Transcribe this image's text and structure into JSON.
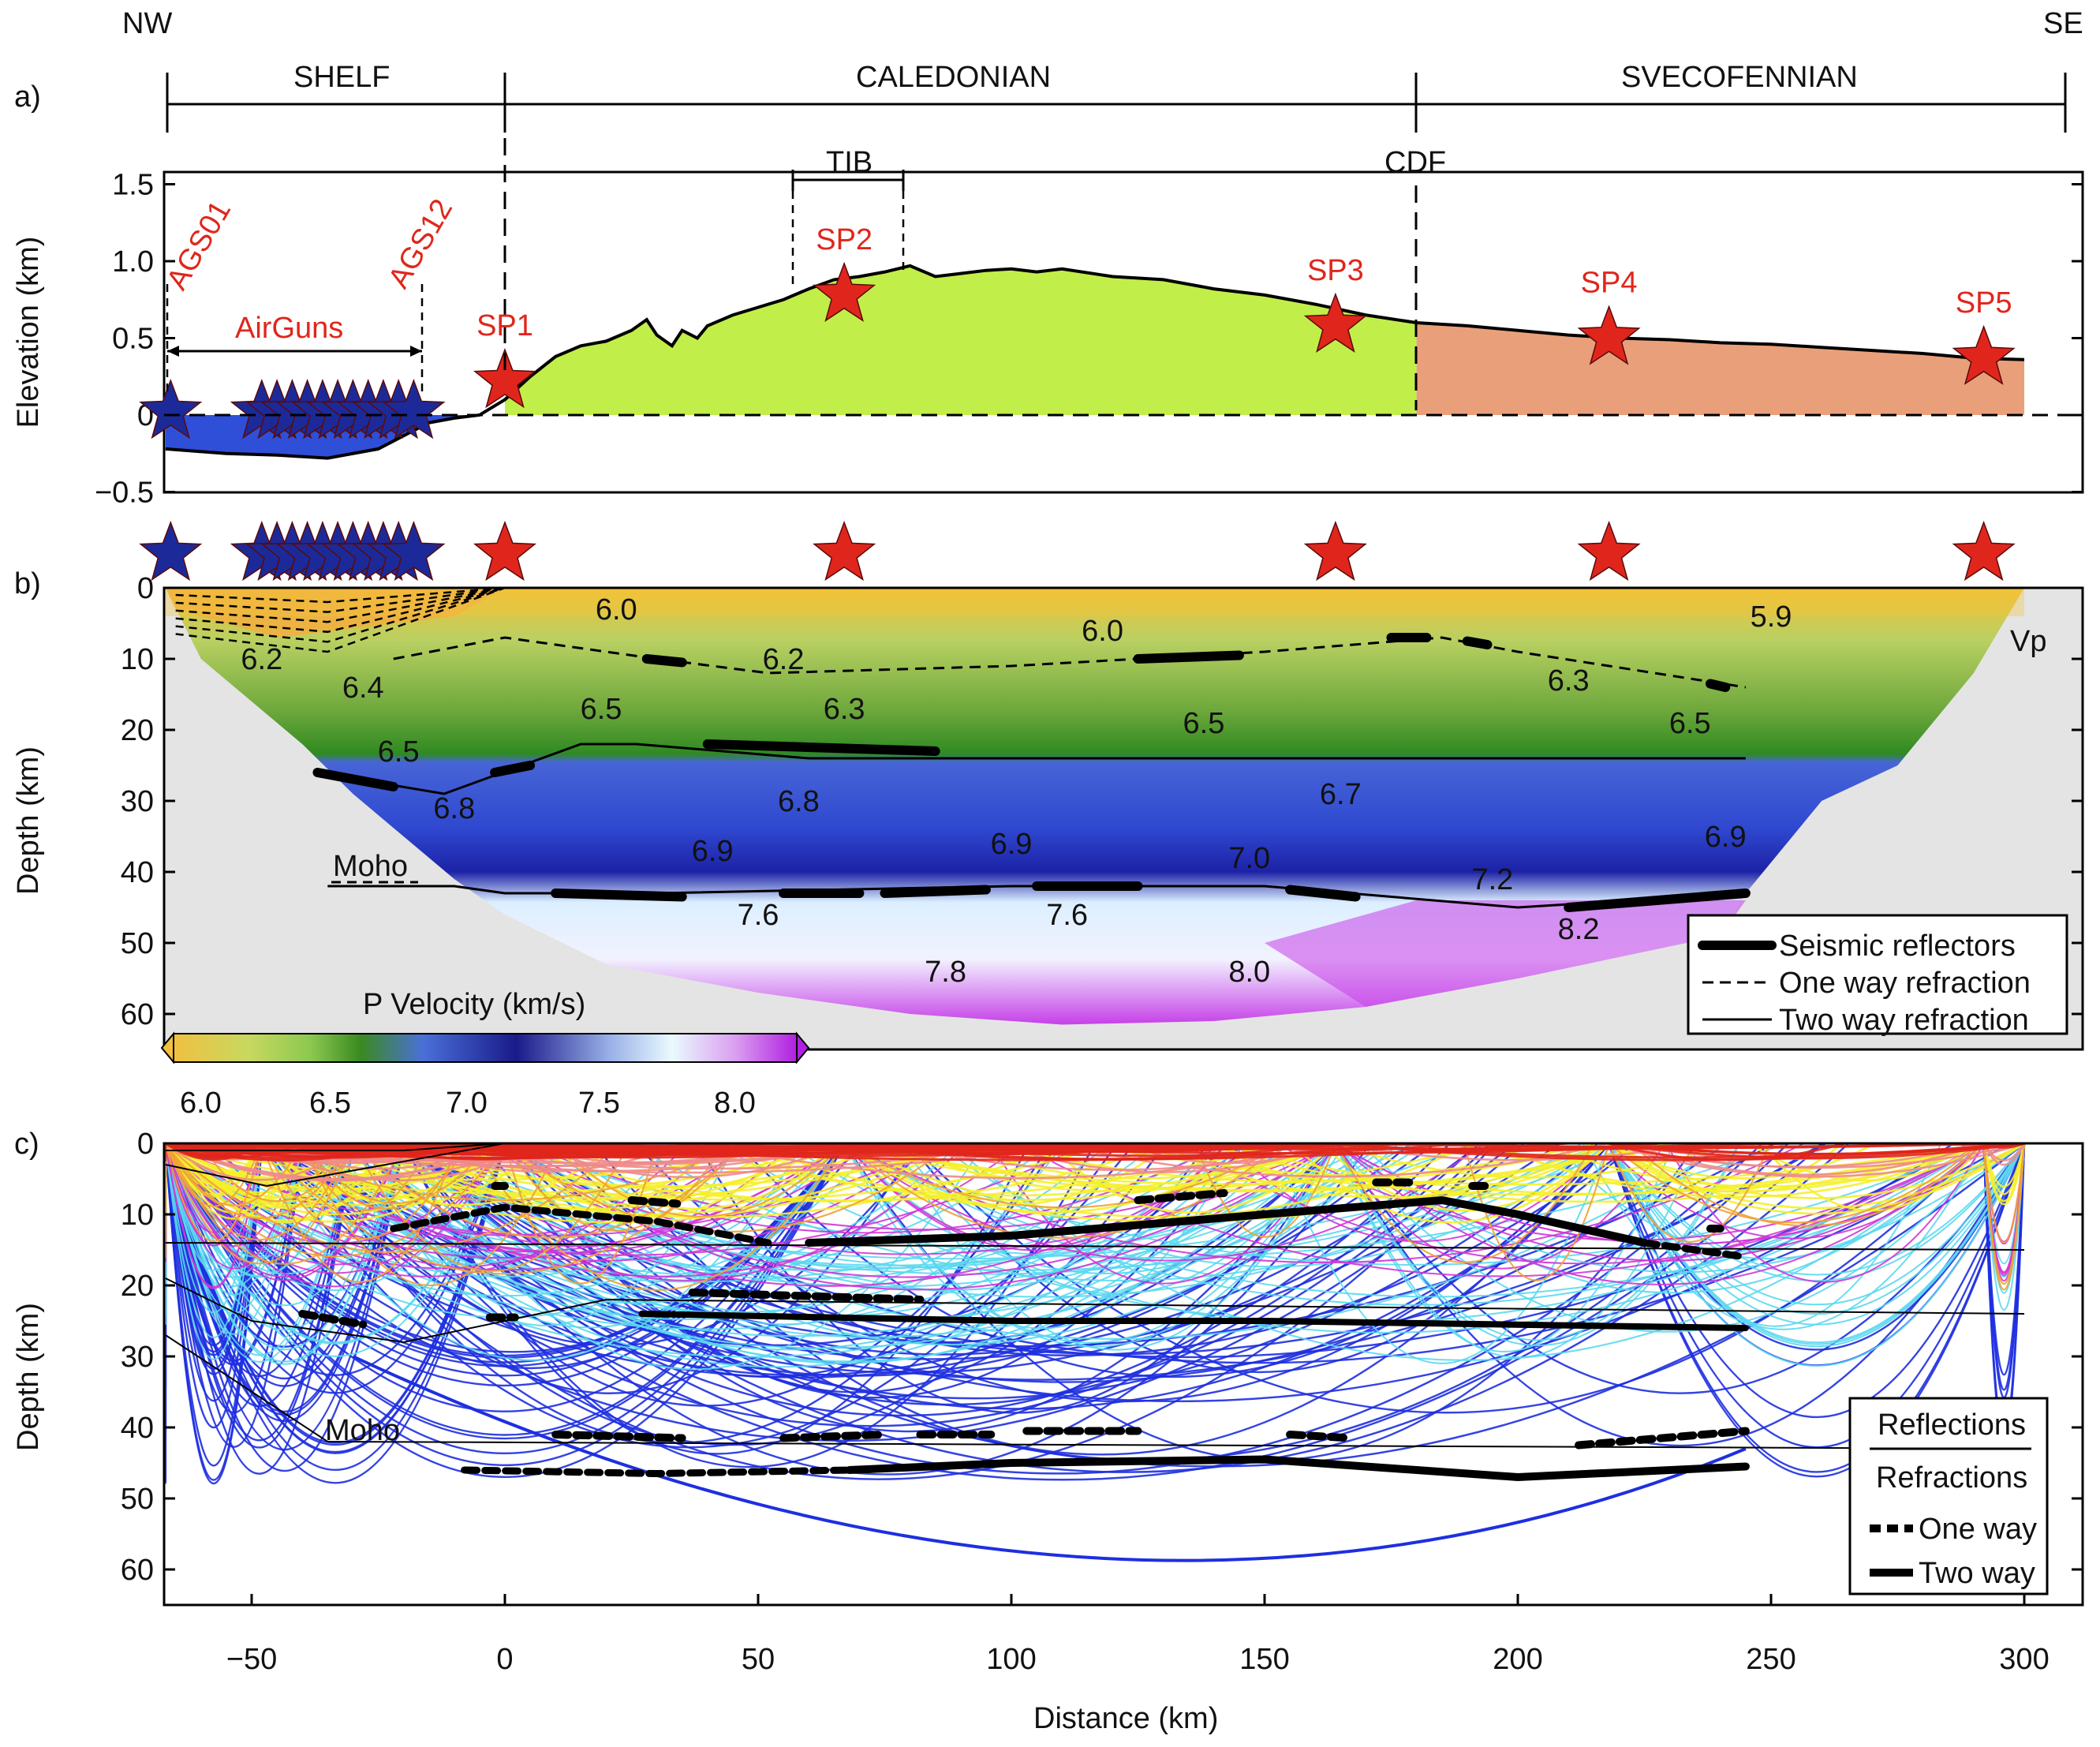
{
  "colors": {
    "shelf_water": "#2f4fd8",
    "caledonian": "#c2ee4a",
    "svecofennian": "#e9a07a",
    "star_red": "#e0261c",
    "star_blue": "#1c2a99",
    "ray_red": "#e0261c",
    "ray_yellow": "#f5ef2a",
    "ray_magenta": "#d235d6",
    "ray_cyan": "#5ad8ef",
    "ray_blue": "#1e2fe0",
    "ray_orange": "#f0a236",
    "ray_pink": "#f08a8a"
  },
  "header": {
    "nw": "NW",
    "se": "SE",
    "domains": [
      "SHELF",
      "CALEDONIAN",
      "SVECOFENNIAN"
    ]
  },
  "panel_a": {
    "label": "a)",
    "ylabel": "Elevation (km)",
    "tib": "TIB",
    "cdf": "CDF",
    "airguns": "AirGuns",
    "ags01": "AGS01",
    "ags12": "AGS12",
    "shots": [
      "SP1",
      "SP2",
      "SP3",
      "SP4",
      "SP5"
    ]
  },
  "panel_b": {
    "label": "b)",
    "ylabel": "Depth (km)",
    "vp": "Vp",
    "moho": "Moho",
    "colorbar_title": "P Velocity (km/s)",
    "colorbar_ticks": [
      "6.0",
      "6.5",
      "7.0",
      "7.5",
      "8.0"
    ],
    "legend": [
      "Seismic reflectors",
      "One way refraction",
      "Two way refraction"
    ],
    "velocity_labels": [
      {
        "text": "6.0",
        "x": 22,
        "y": 3
      },
      {
        "text": "6.2",
        "x": -48,
        "y": 10
      },
      {
        "text": "6.4",
        "x": -28,
        "y": 14
      },
      {
        "text": "6.5",
        "x": -21,
        "y": 23
      },
      {
        "text": "6.5",
        "x": 19,
        "y": 17
      },
      {
        "text": "6.2",
        "x": 55,
        "y": 10
      },
      {
        "text": "6.3",
        "x": 67,
        "y": 17
      },
      {
        "text": "6.0",
        "x": 118,
        "y": 6
      },
      {
        "text": "6.5",
        "x": 138,
        "y": 19
      },
      {
        "text": "6.3",
        "x": 210,
        "y": 13
      },
      {
        "text": "6.5",
        "x": 234,
        "y": 19
      },
      {
        "text": "5.9",
        "x": 250,
        "y": 4
      },
      {
        "text": "6.8",
        "x": -10,
        "y": 31
      },
      {
        "text": "6.8",
        "x": 58,
        "y": 30
      },
      {
        "text": "6.9",
        "x": 41,
        "y": 37
      },
      {
        "text": "6.9",
        "x": 100,
        "y": 36
      },
      {
        "text": "6.7",
        "x": 165,
        "y": 29
      },
      {
        "text": "6.9",
        "x": 241,
        "y": 35
      },
      {
        "text": "7.0",
        "x": 147,
        "y": 38
      },
      {
        "text": "7.2",
        "x": 195,
        "y": 41
      },
      {
        "text": "7.6",
        "x": 50,
        "y": 46
      },
      {
        "text": "7.6",
        "x": 111,
        "y": 46
      },
      {
        "text": "7.8",
        "x": 87,
        "y": 54
      },
      {
        "text": "8.0",
        "x": 147,
        "y": 54
      },
      {
        "text": "8.2",
        "x": 212,
        "y": 48
      }
    ]
  },
  "panel_c": {
    "label": "c)",
    "ylabel": "Depth (km)",
    "xlabel": "Distance (km)",
    "moho": "Moho",
    "legend_title1": "Reflections",
    "legend_title2": "Refractions",
    "legend": [
      "One way",
      "Two way"
    ]
  },
  "chart_data": [
    {
      "type": "area",
      "title": "",
      "xlabel": "",
      "ylabel": "Elevation (km)",
      "xlim": [
        -70,
        305
      ],
      "ylim": [
        -0.5,
        1.5
      ],
      "yticks": [
        1.5,
        1.0,
        0.5,
        0,
        -0.5
      ],
      "ytick_labels": [
        "1.5",
        "1.0",
        "0.5",
        "0",
        "−0.5"
      ],
      "topography": {
        "x": [
          -67,
          -55,
          -45,
          -35,
          -25,
          -15,
          -10,
          -5,
          0,
          5,
          10,
          15,
          20,
          25,
          28,
          30,
          33,
          35,
          38,
          40,
          45,
          50,
          55,
          60,
          65,
          70,
          75,
          80,
          85,
          90,
          95,
          100,
          105,
          110,
          120,
          130,
          140,
          150,
          160,
          170,
          180,
          190,
          200,
          210,
          220,
          230,
          240,
          250,
          260,
          270,
          280,
          290,
          300
        ],
        "y": [
          -0.22,
          -0.25,
          -0.26,
          -0.28,
          -0.22,
          -0.05,
          -0.02,
          0.0,
          0.1,
          0.25,
          0.38,
          0.45,
          0.48,
          0.55,
          0.62,
          0.52,
          0.45,
          0.55,
          0.5,
          0.58,
          0.65,
          0.7,
          0.75,
          0.82,
          0.88,
          0.9,
          0.93,
          0.97,
          0.9,
          0.92,
          0.94,
          0.95,
          0.93,
          0.95,
          0.9,
          0.88,
          0.82,
          0.78,
          0.72,
          0.65,
          0.6,
          0.58,
          0.55,
          0.52,
          0.5,
          0.49,
          0.47,
          0.46,
          0.44,
          0.42,
          0.4,
          0.37,
          0.36
        ]
      },
      "regions": [
        {
          "name": "SHELF",
          "x": [
            -67,
            0
          ]
        },
        {
          "name": "CALEDONIAN",
          "x": [
            0,
            180
          ]
        },
        {
          "name": "SVECOFENNIAN",
          "x": [
            180,
            300
          ]
        }
      ],
      "tib_range": [
        57,
        79
      ],
      "cdf_x": 180,
      "shot_points": [
        {
          "name": "SP1",
          "x": 0,
          "elev": 0.22
        },
        {
          "name": "SP2",
          "x": 67,
          "elev": 0.78
        },
        {
          "name": "SP3",
          "x": 164,
          "elev": 0.58
        },
        {
          "name": "SP4",
          "x": 218,
          "elev": 0.5
        },
        {
          "name": "SP5",
          "x": 292,
          "elev": 0.37
        }
      ],
      "airgun_positions_x": [
        -66,
        -48,
        -45,
        -42,
        -39,
        -36,
        -33,
        -30,
        -27,
        -24,
        -21,
        -18
      ]
    },
    {
      "type": "heatmap",
      "title": "",
      "xlabel": "",
      "ylabel": "Depth (km)",
      "xlim": [
        -70,
        305
      ],
      "ylim": [
        0,
        65
      ],
      "yticks": [
        0,
        10,
        20,
        30,
        40,
        50,
        60
      ],
      "colorbar": {
        "title": "P Velocity (km/s)",
        "range": [
          5.85,
          8.2
        ],
        "ticks": [
          6.0,
          6.5,
          7.0,
          7.5,
          8.0
        ]
      },
      "interfaces": [
        {
          "name": "upper",
          "x": [
            -22,
            0,
            30,
            52,
            100,
            150,
            185,
            200,
            245
          ],
          "y": [
            10,
            7,
            10,
            12,
            11,
            9,
            7,
            9,
            14
          ]
        },
        {
          "name": "mid",
          "x": [
            -37,
            -12,
            15,
            26,
            60,
            150,
            245
          ],
          "y": [
            26,
            29,
            22,
            22,
            24,
            24,
            24
          ]
        },
        {
          "name": "Moho",
          "x": [
            -35,
            -10,
            0,
            30,
            100,
            150,
            200,
            245
          ],
          "y": [
            42,
            42,
            43,
            43,
            42,
            42,
            45,
            43
          ]
        }
      ]
    },
    {
      "type": "line",
      "title": "",
      "xlabel": "Distance (km)",
      "ylabel": "Depth (km)",
      "xlim": [
        -70,
        305
      ],
      "ylim": [
        0,
        65
      ],
      "xticks": [
        -50,
        0,
        50,
        100,
        150,
        200,
        250,
        300
      ],
      "yticks": [
        0,
        10,
        20,
        30,
        40,
        50,
        60
      ],
      "model_boundaries": [
        {
          "x": [
            -67,
            300
          ],
          "y": [
            14,
            15
          ]
        },
        {
          "x": [
            -67,
            -50,
            -20,
            20,
            300
          ],
          "y": [
            19,
            25,
            28,
            22,
            24
          ]
        },
        {
          "x": [
            -67,
            -35,
            300
          ],
          "y": [
            27,
            42,
            43
          ]
        }
      ]
    }
  ]
}
